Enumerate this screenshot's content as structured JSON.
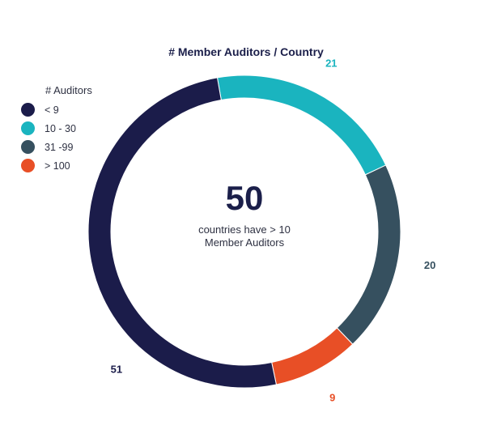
{
  "chart_data": {
    "type": "pie",
    "title": "# Member Auditors / Country",
    "legend": {
      "title": "# Auditors",
      "placement": "top-left"
    },
    "categories": [
      "< 9",
      "10 - 30",
      "31 -99",
      "> 100"
    ],
    "values": [
      51,
      21,
      20,
      9
    ],
    "value_labels": [
      "51",
      "21",
      "20",
      "9"
    ],
    "colors": [
      "#1b1c4a",
      "#1ab4bf",
      "#36505f",
      "#e84f26"
    ],
    "label_colors": [
      "#1b1c4a",
      "#1ab4bf",
      "#36505f",
      "#e84f26"
    ],
    "center_value": "50",
    "center_caption": "countries have > 10\nMember Auditors"
  }
}
